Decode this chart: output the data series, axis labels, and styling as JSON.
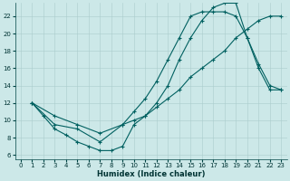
{
  "xlabel": "Humidex (Indice chaleur)",
  "background_color": "#cce8e8",
  "grid_color": "#aacccc",
  "line_color": "#006060",
  "xlim": [
    -0.5,
    23.5
  ],
  "ylim": [
    5.5,
    23.5
  ],
  "xticks": [
    0,
    1,
    2,
    3,
    4,
    5,
    6,
    7,
    8,
    9,
    10,
    11,
    12,
    13,
    14,
    15,
    16,
    17,
    18,
    19,
    20,
    21,
    22,
    23
  ],
  "yticks": [
    6,
    8,
    10,
    12,
    14,
    16,
    18,
    20,
    22
  ],
  "curve_upper_x": [
    1,
    2,
    3,
    4,
    5,
    6,
    7,
    8,
    9,
    10,
    11,
    12,
    13,
    14,
    15,
    16,
    17,
    18,
    19,
    20,
    21,
    22,
    23
  ],
  "curve_upper_y": [
    12,
    10.5,
    9.0,
    8.3,
    7.5,
    7.0,
    6.5,
    6.5,
    7.0,
    9.5,
    10.5,
    12.0,
    14.0,
    17.0,
    19.5,
    21.5,
    23.0,
    23.5,
    23.5,
    19.5,
    16.0,
    13.5,
    13.5
  ],
  "curve_mid_x": [
    1,
    3,
    5,
    7,
    9,
    10,
    11,
    12,
    13,
    14,
    15,
    16,
    17,
    18,
    19,
    20,
    21,
    22,
    23
  ],
  "curve_mid_y": [
    12,
    9.5,
    9.0,
    7.5,
    9.5,
    11.0,
    12.5,
    14.5,
    17.0,
    19.5,
    22.0,
    22.5,
    22.5,
    22.5,
    22.0,
    19.5,
    16.5,
    14.0,
    13.5
  ],
  "curve_low_x": [
    1,
    3,
    5,
    7,
    9,
    10,
    11,
    12,
    13,
    14,
    15,
    16,
    17,
    18,
    19,
    20,
    21,
    22,
    23
  ],
  "curve_low_y": [
    12,
    10.5,
    9.5,
    8.5,
    9.5,
    10.0,
    10.5,
    11.5,
    12.5,
    13.5,
    15.0,
    16.0,
    17.0,
    18.0,
    19.5,
    20.5,
    21.5,
    22.0,
    22.0
  ],
  "marker": "+",
  "markersize": 2.5,
  "linewidth": 0.8,
  "tick_labelsize": 5,
  "xlabel_fontsize": 6
}
